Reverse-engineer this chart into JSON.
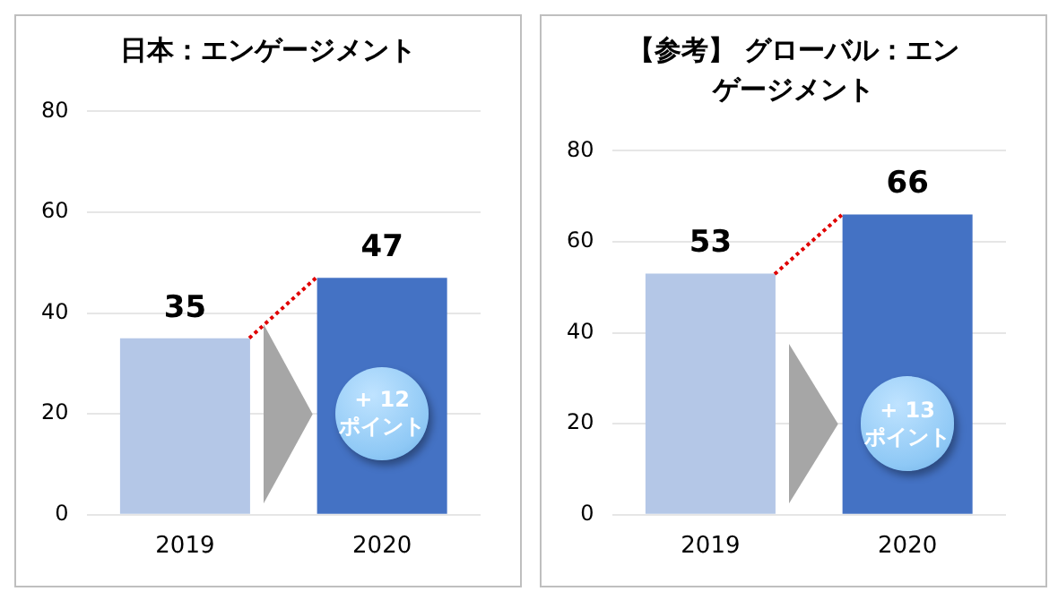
{
  "chart_data": [
    {
      "type": "bar",
      "title": "日本：エンゲージメント",
      "categories": [
        "2019",
        "2020"
      ],
      "values": [
        35,
        47
      ],
      "colors": [
        "#b4c7e7",
        "#4472c4"
      ],
      "ylim": [
        0,
        80
      ],
      "yticks": [
        0,
        20,
        40,
        60,
        80
      ],
      "grid": "y",
      "data_labels": true,
      "annotations": [
        "+ 12\nポイント"
      ]
    },
    {
      "type": "bar",
      "title": "【参考】 グローバル：エンゲージメント",
      "categories": [
        "2019",
        "2020"
      ],
      "values": [
        53,
        66
      ],
      "colors": [
        "#b4c7e7",
        "#4472c4"
      ],
      "ylim": [
        0,
        80
      ],
      "yticks": [
        0,
        20,
        40,
        60,
        80
      ],
      "grid": "y",
      "data_labels": true,
      "annotations": [
        "+ 13\nポイント"
      ]
    }
  ]
}
